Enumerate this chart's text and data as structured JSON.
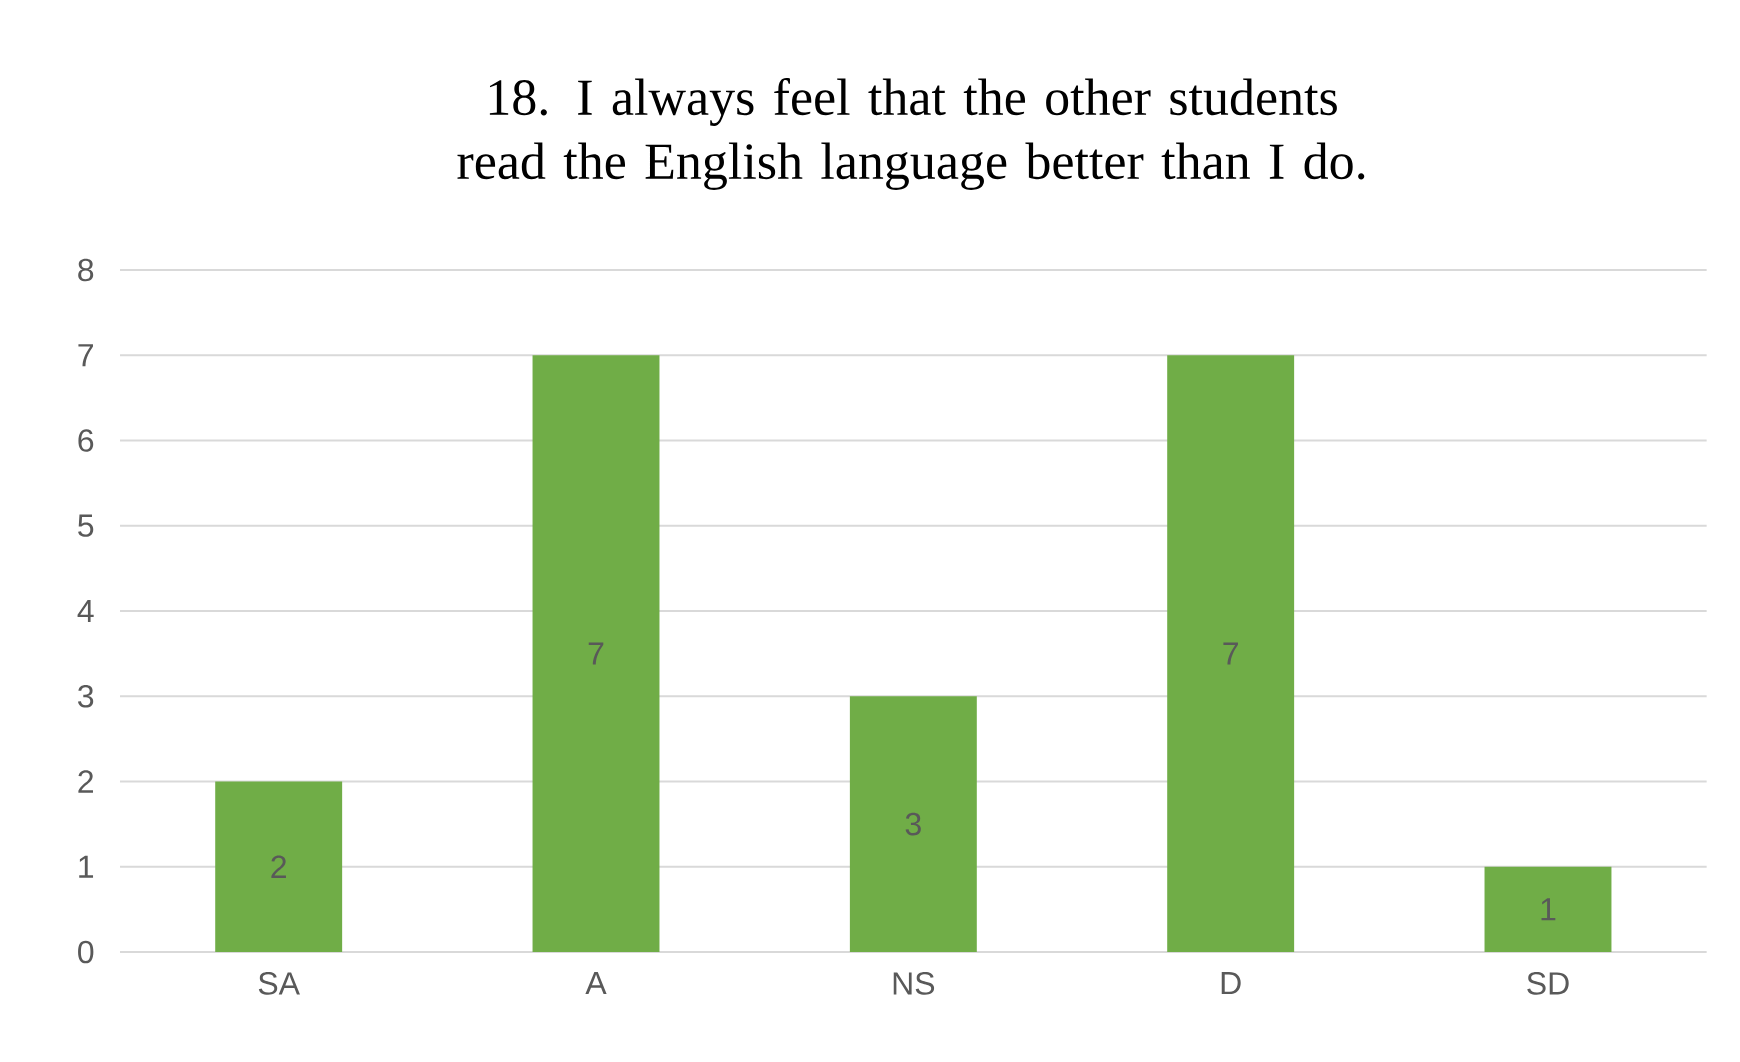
{
  "chart_data": {
    "type": "bar",
    "title": "18. I always feel that the other students read the English language better than I do.",
    "categories": [
      "SA",
      "A",
      "NS",
      "D",
      "SD"
    ],
    "values": [
      2,
      7,
      3,
      7,
      1
    ],
    "color": "#70ad47",
    "ylim": [
      0,
      8
    ],
    "yticks": [
      0,
      1,
      2,
      3,
      4,
      5,
      6,
      7,
      8
    ],
    "grid": "y",
    "data_labels": true
  }
}
